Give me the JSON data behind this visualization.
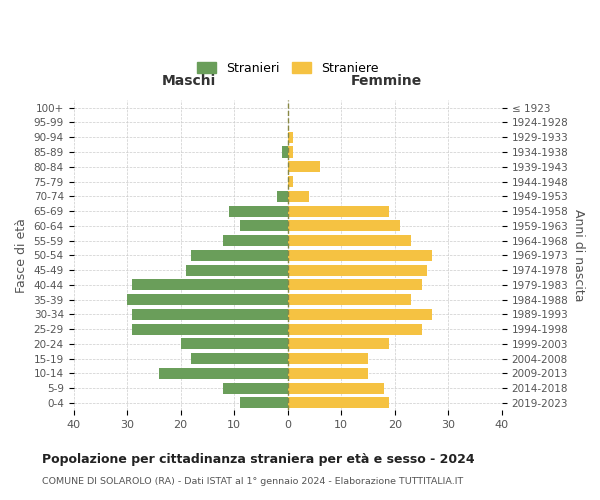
{
  "age_groups": [
    "100+",
    "95-99",
    "90-94",
    "85-89",
    "80-84",
    "75-79",
    "70-74",
    "65-69",
    "60-64",
    "55-59",
    "50-54",
    "45-49",
    "40-44",
    "35-39",
    "30-34",
    "25-29",
    "20-24",
    "15-19",
    "10-14",
    "5-9",
    "0-4"
  ],
  "birth_years": [
    "≤ 1923",
    "1924-1928",
    "1929-1933",
    "1934-1938",
    "1939-1943",
    "1944-1948",
    "1949-1953",
    "1954-1958",
    "1959-1963",
    "1964-1968",
    "1969-1973",
    "1974-1978",
    "1979-1983",
    "1984-1988",
    "1989-1993",
    "1994-1998",
    "1999-2003",
    "2004-2008",
    "2009-2013",
    "2014-2018",
    "2019-2023"
  ],
  "males": [
    0,
    0,
    0,
    1,
    0,
    0,
    2,
    11,
    9,
    12,
    18,
    19,
    29,
    30,
    29,
    29,
    20,
    18,
    24,
    12,
    9
  ],
  "females": [
    0,
    0,
    1,
    1,
    6,
    1,
    4,
    19,
    21,
    23,
    27,
    26,
    25,
    23,
    27,
    25,
    19,
    15,
    15,
    18,
    19
  ],
  "male_color": "#6a9e5a",
  "female_color": "#f5c242",
  "background_color": "#ffffff",
  "grid_color": "#cccccc",
  "title": "Popolazione per cittadinanza straniera per età e sesso - 2024",
  "subtitle": "COMUNE DI SOLAROLO (RA) - Dati ISTAT al 1° gennaio 2024 - Elaborazione TUTTITALIA.IT",
  "left_label": "Maschi",
  "right_label": "Femmine",
  "ylabel": "Fasce di età",
  "right_ylabel": "Anni di nascita",
  "legend_male": "Stranieri",
  "legend_female": "Straniere",
  "xlim": 40,
  "dpi": 100,
  "figsize": [
    6.0,
    5.0
  ]
}
